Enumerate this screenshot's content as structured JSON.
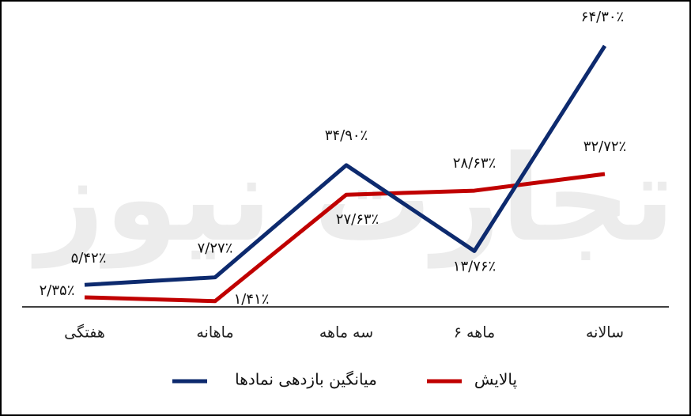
{
  "watermark": "تجارت نیوز",
  "chart_data": {
    "type": "line",
    "categories": [
      "هفتگی",
      "ماهانه",
      "سه ماهه",
      "۶ ماهه",
      "سالانه"
    ],
    "series": [
      {
        "name": "میانگین بازدهی نمادها",
        "color": "#0d2a6e",
        "values": [
          5.42,
          7.27,
          34.9,
          13.76,
          64.3
        ],
        "value_labels": [
          "۵/۴۲٪",
          "۷/۲۷٪",
          "۳۴/۹۰٪",
          "۱۳/۷۶٪",
          "۶۴/۳۰٪"
        ]
      },
      {
        "name": "پالایش",
        "color": "#c00000",
        "values": [
          2.35,
          1.41,
          27.63,
          28.63,
          32.72
        ],
        "value_labels": [
          "۲/۳۵٪",
          "۱/۴۱٪",
          "۲۷/۶۳٪",
          "۲۸/۶۳٪",
          "۳۲/۷۲٪"
        ]
      }
    ]
  }
}
